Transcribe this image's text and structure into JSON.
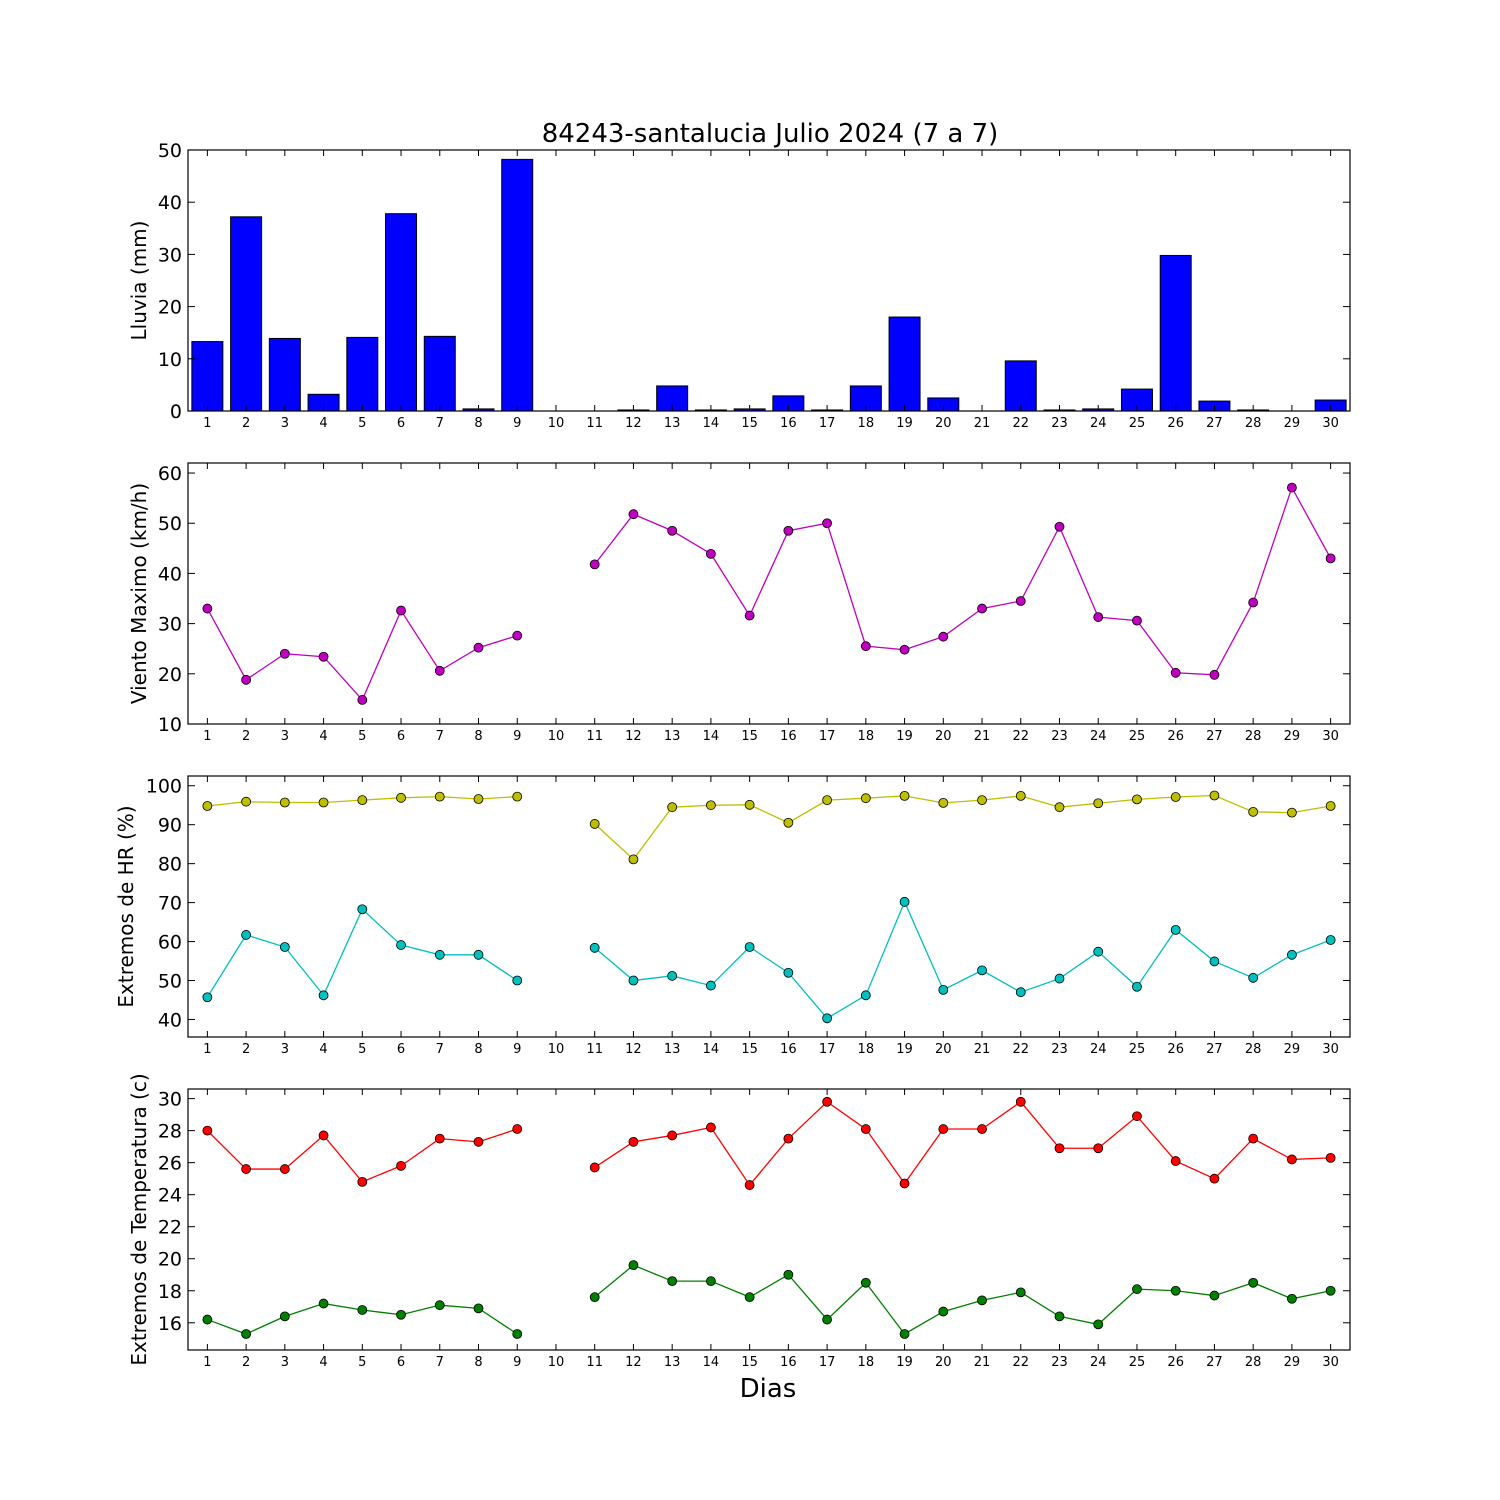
{
  "title": "84243-santalucia Julio 2024  (7 a 7)",
  "xlabel": "Dias",
  "chart_data": [
    {
      "type": "bar",
      "ylabel": "Lluvia (mm)",
      "ylim": [
        0,
        50
      ],
      "yticks": [
        0,
        10,
        20,
        30,
        40,
        50
      ],
      "categories": [
        "1",
        "2",
        "3",
        "4",
        "5",
        "6",
        "7",
        "8",
        "9",
        "10",
        "11",
        "12",
        "13",
        "14",
        "15",
        "16",
        "17",
        "18",
        "19",
        "20",
        "21",
        "22",
        "23",
        "24",
        "25",
        "26",
        "27",
        "28",
        "29",
        "30"
      ],
      "series": [
        {
          "values": [
            13.3,
            37.2,
            13.9,
            3.2,
            14.1,
            37.8,
            14.3,
            0.4,
            48.2,
            0,
            0,
            0.2,
            4.8,
            0.2,
            0.4,
            2.9,
            0.2,
            4.8,
            18.0,
            2.5,
            0,
            9.6,
            0.2,
            0.4,
            4.2,
            29.8,
            1.9,
            0.2,
            0,
            2.1
          ],
          "color": "#0000ff"
        }
      ]
    },
    {
      "type": "line",
      "ylabel": "Viento Maximo (km/h)",
      "ylim": [
        10,
        62
      ],
      "yticks": [
        10,
        20,
        30,
        40,
        50,
        60
      ],
      "categories": [
        "1",
        "2",
        "3",
        "4",
        "5",
        "6",
        "7",
        "8",
        "9",
        "10",
        "11",
        "12",
        "13",
        "14",
        "15",
        "16",
        "17",
        "18",
        "19",
        "20",
        "21",
        "22",
        "23",
        "24",
        "25",
        "26",
        "27",
        "28",
        "29",
        "30"
      ],
      "series": [
        {
          "values": [
            33.0,
            18.8,
            24.0,
            23.4,
            14.8,
            32.6,
            20.6,
            25.2,
            27.6,
            null,
            41.8,
            51.8,
            48.5,
            43.9,
            31.6,
            48.5,
            50.0,
            25.5,
            24.8,
            27.4,
            33.0,
            34.5,
            49.3,
            31.3,
            30.6,
            20.2,
            19.8,
            34.2,
            57.1,
            43.0
          ],
          "color": "#bf00bf"
        }
      ]
    },
    {
      "type": "line",
      "ylabel": "Extremos de HR (%)",
      "ylim": [
        35.5,
        102.5
      ],
      "yticks": [
        40,
        50,
        60,
        70,
        80,
        90,
        100
      ],
      "categories": [
        "1",
        "2",
        "3",
        "4",
        "5",
        "6",
        "7",
        "8",
        "9",
        "10",
        "11",
        "12",
        "13",
        "14",
        "15",
        "16",
        "17",
        "18",
        "19",
        "20",
        "21",
        "22",
        "23",
        "24",
        "25",
        "26",
        "27",
        "28",
        "29",
        "30"
      ],
      "series": [
        {
          "values": [
            94.8,
            95.9,
            95.7,
            95.7,
            96.3,
            96.9,
            97.2,
            96.6,
            97.2,
            null,
            90.2,
            81.1,
            94.5,
            95.0,
            95.1,
            90.5,
            96.3,
            96.8,
            97.4,
            95.6,
            96.3,
            97.4,
            94.5,
            95.5,
            96.5,
            97.1,
            97.5,
            93.3,
            93.1,
            94.8
          ],
          "color": "#bfbf00"
        },
        {
          "values": [
            45.7,
            61.7,
            58.6,
            46.2,
            68.3,
            59.1,
            56.6,
            56.6,
            50.0,
            null,
            58.4,
            50.0,
            51.2,
            48.7,
            58.6,
            52.0,
            40.3,
            46.2,
            70.2,
            47.6,
            52.6,
            47.0,
            50.5,
            57.4,
            48.4,
            63.0,
            54.9,
            50.7,
            56.6,
            60.4
          ],
          "color": "#00bfbf"
        }
      ]
    },
    {
      "type": "line",
      "ylabel": "Extremos de Temperatura (c)",
      "ylim": [
        14.3,
        30.6
      ],
      "yticks": [
        16,
        18,
        20,
        22,
        24,
        26,
        28,
        30
      ],
      "categories": [
        "1",
        "2",
        "3",
        "4",
        "5",
        "6",
        "7",
        "8",
        "9",
        "10",
        "11",
        "12",
        "13",
        "14",
        "15",
        "16",
        "17",
        "18",
        "19",
        "20",
        "21",
        "22",
        "23",
        "24",
        "25",
        "26",
        "27",
        "28",
        "29",
        "30"
      ],
      "series": [
        {
          "values": [
            28.0,
            25.6,
            25.6,
            27.7,
            24.8,
            25.8,
            27.5,
            27.3,
            28.1,
            null,
            25.7,
            27.3,
            27.7,
            28.2,
            24.6,
            27.5,
            29.8,
            28.1,
            24.7,
            28.1,
            28.1,
            29.8,
            26.9,
            26.9,
            28.9,
            26.1,
            25.0,
            27.5,
            26.2,
            26.3
          ],
          "color": "#ff0000"
        },
        {
          "values": [
            16.2,
            15.3,
            16.4,
            17.2,
            16.8,
            16.5,
            17.1,
            16.9,
            15.3,
            null,
            17.6,
            19.6,
            18.6,
            18.6,
            17.6,
            19.0,
            16.2,
            18.5,
            15.3,
            16.7,
            17.4,
            17.9,
            16.4,
            15.9,
            18.1,
            18.0,
            17.7,
            18.5,
            17.5,
            18.0
          ],
          "color": "#007f00"
        }
      ]
    }
  ]
}
